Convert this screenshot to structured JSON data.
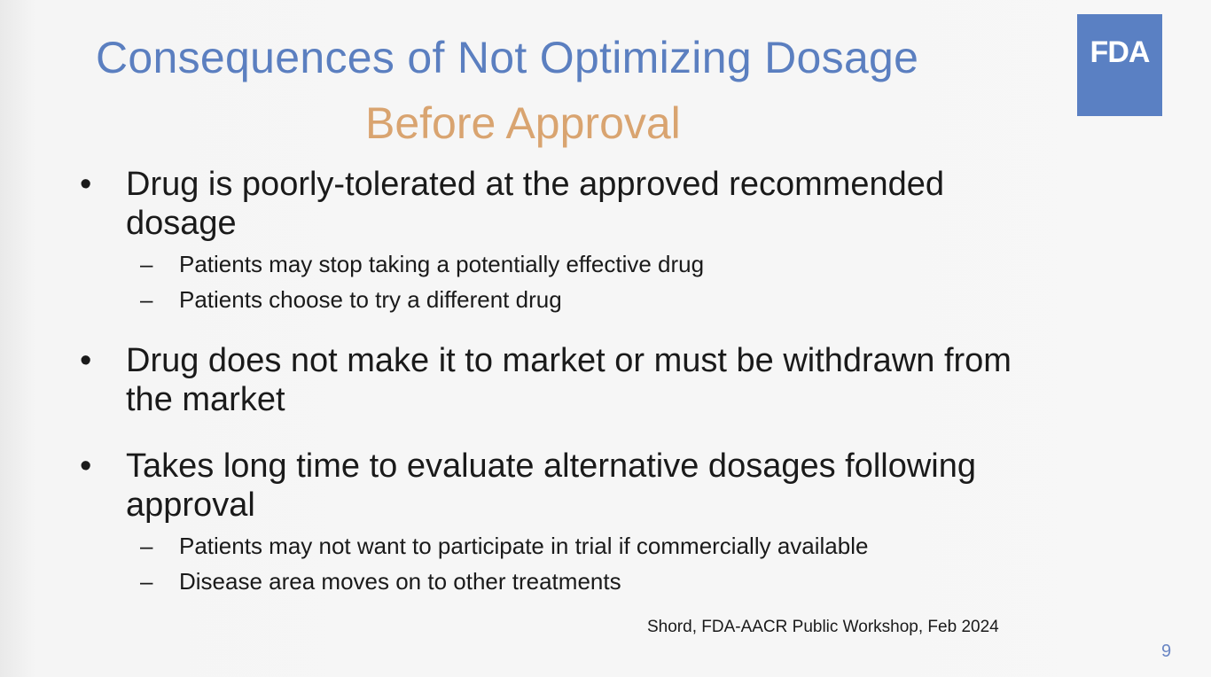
{
  "slide": {
    "title": "Consequences of Not Optimizing Dosage",
    "subtitle": "Before Approval",
    "logo_text": "FDA",
    "bullet_marker": "•",
    "sub_marker": "–",
    "bullets": [
      {
        "text": "Drug is poorly-tolerated at the approved recommended\ndosage",
        "subs": [
          "Patients may stop taking a potentially effective drug",
          "Patients choose to try a different drug"
        ]
      },
      {
        "text": "Drug does not make it to market or must be withdrawn from\nthe market",
        "subs": []
      },
      {
        "text": "Takes long time to evaluate alternative dosages following\napproval",
        "subs": [
          "Patients may not want to participate in trial if commercially available",
          "Disease area moves on to other treatments"
        ]
      }
    ],
    "citation": "Shord, FDA-AACR Public Workshop, Feb 2024",
    "page_number": "9"
  },
  "colors": {
    "title": "#5b7fc0",
    "subtitle": "#d9a470",
    "logo_bg": "#5a80c3",
    "body_text": "#1a1a1a"
  }
}
